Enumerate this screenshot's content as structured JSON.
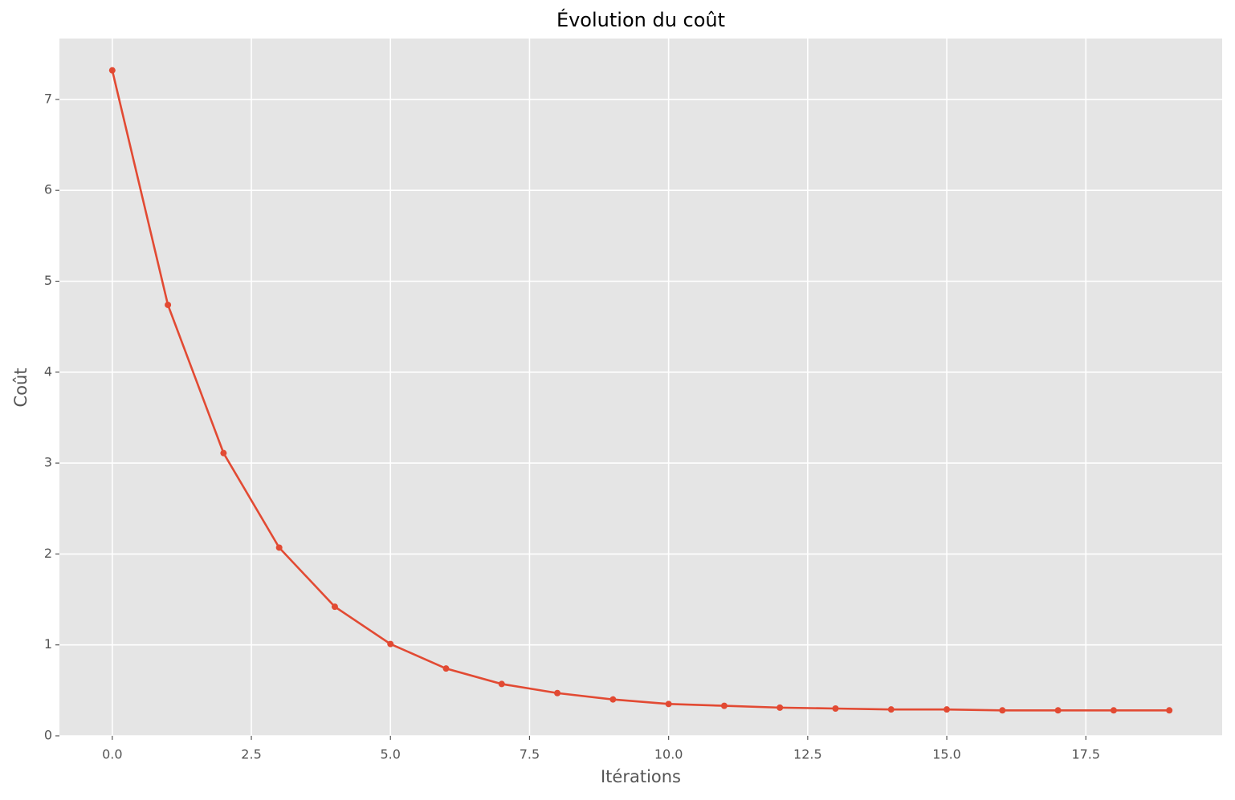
{
  "chart_data": {
    "type": "line",
    "title": "Évolution du coût",
    "xlabel": "Itérations",
    "ylabel": "Coût",
    "x": [
      0,
      1,
      2,
      3,
      4,
      5,
      6,
      7,
      8,
      9,
      10,
      11,
      12,
      13,
      14,
      15,
      16,
      17,
      18,
      19
    ],
    "values": [
      7.32,
      4.74,
      3.11,
      2.07,
      1.42,
      1.01,
      0.74,
      0.57,
      0.47,
      0.4,
      0.35,
      0.33,
      0.31,
      0.3,
      0.29,
      0.29,
      0.28,
      0.28,
      0.28,
      0.28
    ],
    "color": "#e24a33",
    "xlim": [
      -0.95,
      19.95
    ],
    "xticks": [
      {
        "value": 0,
        "label": "0.0"
      },
      {
        "value": 2.5,
        "label": "2.5"
      },
      {
        "value": 5,
        "label": "5.0"
      },
      {
        "value": 7.5,
        "label": "7.5"
      },
      {
        "value": 10,
        "label": "10.0"
      },
      {
        "value": 12.5,
        "label": "12.5"
      },
      {
        "value": 15,
        "label": "15.0"
      },
      {
        "value": 17.5,
        "label": "17.5"
      }
    ],
    "ylim": [
      0,
      7.67
    ],
    "yticks": [
      0,
      1,
      2,
      3,
      4,
      5,
      6,
      7
    ],
    "grid": true
  }
}
